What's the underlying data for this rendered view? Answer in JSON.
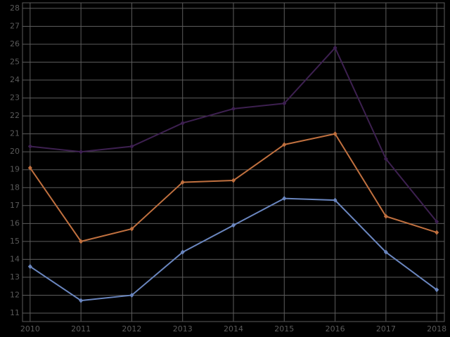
{
  "chart_data": {
    "type": "line",
    "x": [
      2010,
      2011,
      2012,
      2013,
      2014,
      2015,
      2016,
      2017,
      2018
    ],
    "series": [
      {
        "color": "#3d2050",
        "values": [
          20.3,
          20.0,
          20.3,
          21.6,
          22.4,
          22.7,
          25.8,
          19.6,
          16.1
        ]
      },
      {
        "color": "#c0703f",
        "values": [
          19.1,
          15.0,
          15.7,
          18.3,
          18.4,
          20.4,
          21.0,
          16.4,
          15.5
        ]
      },
      {
        "color": "#6a86bf",
        "values": [
          13.6,
          11.7,
          12.0,
          14.4,
          15.9,
          17.4,
          17.3,
          14.4,
          12.3
        ]
      }
    ],
    "xlim": [
      2009.85,
      2018.15
    ],
    "xticks": [
      2010,
      2011,
      2012,
      2013,
      2014,
      2015,
      2016,
      2017,
      2018
    ],
    "ylim": [
      10.53,
      28.31
    ],
    "yticks": [
      11,
      12,
      13,
      14,
      15,
      16,
      17,
      18,
      19,
      20,
      21,
      22,
      23,
      24,
      25,
      26,
      27,
      28
    ],
    "grid": true
  }
}
